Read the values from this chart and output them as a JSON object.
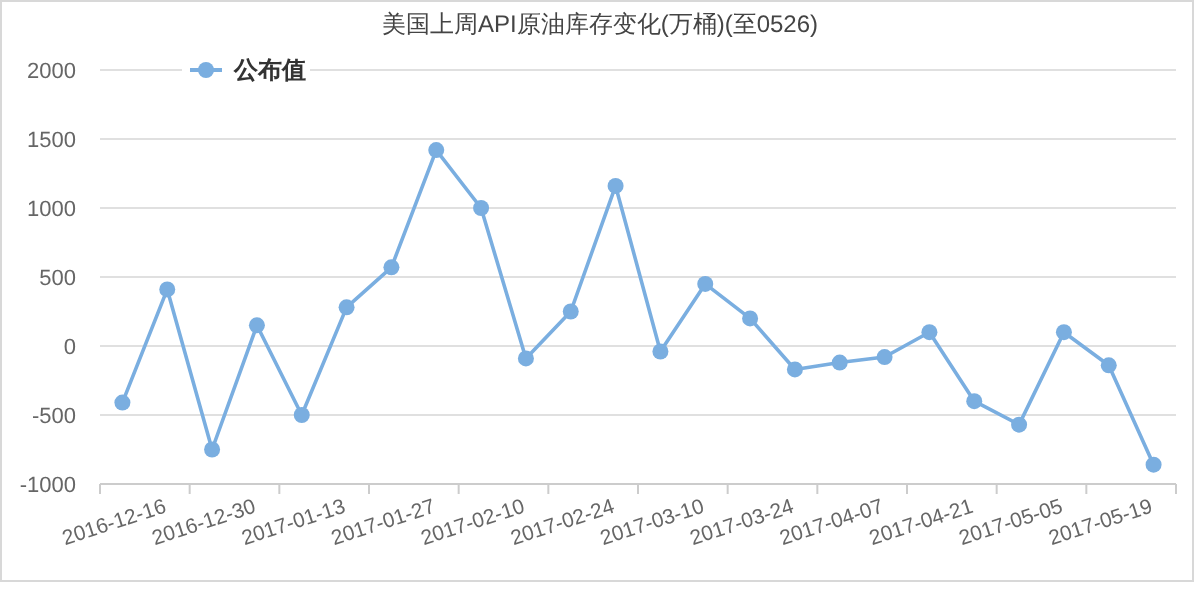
{
  "chart_data": {
    "type": "line",
    "title": "美国上周API原油库存变化(万桶)(至0526)",
    "categories": [
      null,
      "2016-12-16",
      null,
      "2016-12-30",
      null,
      "2017-01-13",
      null,
      "2017-01-27",
      null,
      "2017-02-10",
      null,
      "2017-02-24",
      null,
      "2017-03-10",
      null,
      "2017-03-24",
      null,
      "2017-04-07",
      null,
      "2017-04-21",
      null,
      "2017-05-05",
      null,
      "2017-05-19"
    ],
    "series": [
      {
        "name": "公布值",
        "color": "#7aaee0",
        "values": [
          -410,
          410,
          -750,
          150,
          -500,
          280,
          570,
          1420,
          1000,
          -90,
          250,
          1160,
          -40,
          450,
          200,
          -170,
          -120,
          -80,
          100,
          -400,
          -570,
          100,
          -140,
          -860
        ]
      }
    ],
    "ylim": [
      -1000,
      2000
    ],
    "yticks": [
      -1000,
      -500,
      0,
      500,
      1000,
      1500,
      2000
    ],
    "grid": "y",
    "legend": "top left",
    "marker": "circle",
    "line_style": "solid"
  }
}
